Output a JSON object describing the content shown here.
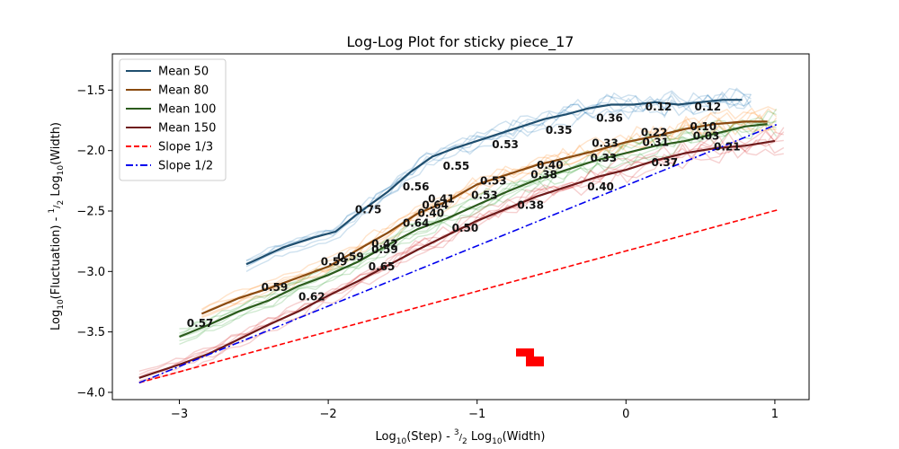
{
  "chart_data": {
    "type": "line",
    "title": "Log-Log Plot for sticky piece_17",
    "xlabel": "Log10(Step) - 3/2 Log10(Width)",
    "ylabel": "Log10(Fluctuation) - 1/2 Log10(Width)",
    "xlim": [
      -3.45,
      1.23
    ],
    "ylim": [
      -4.06,
      -1.2
    ],
    "xticks": [
      -3,
      -2,
      -1,
      0,
      1
    ],
    "yticks": [
      -4.0,
      -3.5,
      -3.0,
      -2.5,
      -2.0,
      -1.5
    ],
    "xtick_labels": [
      "−3",
      "−2",
      "−1",
      "0",
      "1"
    ],
    "ytick_labels": [
      "−4.0",
      "−3.5",
      "−3.0",
      "−2.5",
      "−2.0",
      "−1.5"
    ],
    "legend_position": "upper-left",
    "grid": false,
    "series": [
      {
        "name": "Mean 50",
        "color": "#1f4e6e",
        "x": [
          -2.55,
          -2.3,
          -2.1,
          -1.95,
          -1.8,
          -1.6,
          -1.45,
          -1.3,
          -1.15,
          -1.0,
          -0.85,
          -0.7,
          -0.55,
          -0.4,
          -0.25,
          -0.1,
          0.05,
          0.2,
          0.35,
          0.5,
          0.65,
          0.78
        ],
        "y": [
          -2.94,
          -2.8,
          -2.72,
          -2.67,
          -2.52,
          -2.34,
          -2.18,
          -2.05,
          -1.98,
          -1.92,
          -1.86,
          -1.8,
          -1.74,
          -1.7,
          -1.65,
          -1.62,
          -1.62,
          -1.6,
          -1.62,
          -1.6,
          -1.58,
          -1.58
        ]
      },
      {
        "name": "Mean 80",
        "color": "#8a4a0f",
        "x": [
          -2.85,
          -2.6,
          -2.4,
          -2.2,
          -2.0,
          -1.8,
          -1.6,
          -1.4,
          -1.2,
          -1.0,
          -0.8,
          -0.6,
          -0.4,
          -0.2,
          0.0,
          0.2,
          0.4,
          0.6,
          0.8,
          0.95
        ],
        "y": [
          -3.35,
          -3.22,
          -3.14,
          -3.05,
          -2.96,
          -2.82,
          -2.68,
          -2.52,
          -2.42,
          -2.28,
          -2.2,
          -2.12,
          -2.06,
          -2.0,
          -1.93,
          -1.88,
          -1.82,
          -1.78,
          -1.76,
          -1.76
        ]
      },
      {
        "name": "Mean 100",
        "color": "#2b5b1c",
        "x": [
          -3.0,
          -2.8,
          -2.6,
          -2.4,
          -2.2,
          -2.0,
          -1.8,
          -1.6,
          -1.4,
          -1.2,
          -1.0,
          -0.8,
          -0.6,
          -0.4,
          -0.2,
          0.0,
          0.2,
          0.4,
          0.6,
          0.8,
          0.95
        ],
        "y": [
          -3.54,
          -3.44,
          -3.33,
          -3.24,
          -3.12,
          -3.03,
          -2.92,
          -2.78,
          -2.65,
          -2.56,
          -2.45,
          -2.34,
          -2.24,
          -2.16,
          -2.08,
          -2.02,
          -1.96,
          -1.92,
          -1.86,
          -1.8,
          -1.78
        ]
      },
      {
        "name": "Mean 150",
        "color": "#6e1a1a",
        "x": [
          -3.27,
          -3.0,
          -2.8,
          -2.6,
          -2.4,
          -2.2,
          -2.0,
          -1.8,
          -1.6,
          -1.4,
          -1.2,
          -1.0,
          -0.8,
          -0.6,
          -0.4,
          -0.2,
          0.0,
          0.2,
          0.4,
          0.6,
          0.8,
          1.0
        ],
        "y": [
          -3.88,
          -3.77,
          -3.68,
          -3.56,
          -3.44,
          -3.33,
          -3.2,
          -3.08,
          -2.95,
          -2.82,
          -2.7,
          -2.58,
          -2.48,
          -2.38,
          -2.3,
          -2.22,
          -2.16,
          -2.08,
          -2.02,
          -1.98,
          -1.96,
          -1.92
        ]
      },
      {
        "name": "Slope 1/3",
        "color": "#ff0000",
        "style": "dashed",
        "x": [
          -3.27,
          1.02
        ],
        "y": [
          -3.92,
          -2.49
        ]
      },
      {
        "name": "Slope 1/2",
        "color": "#0000ee",
        "style": "dashdot",
        "x": [
          -3.27,
          1.02
        ],
        "y": [
          -3.92,
          -1.78
        ]
      }
    ],
    "background_bands": [
      {
        "series": "Mean 50",
        "color": "#1f77b4"
      },
      {
        "series": "Mean 80",
        "color": "#ff7f0e"
      },
      {
        "series": "Mean 100",
        "color": "#2ca02c"
      },
      {
        "series": "Mean 150",
        "color": "#d62728"
      }
    ],
    "annotations": [
      {
        "text": "0.75",
        "x": -1.82,
        "y": -2.49
      },
      {
        "text": "0.56",
        "x": -1.5,
        "y": -2.3
      },
      {
        "text": "0.55",
        "x": -1.23,
        "y": -2.13
      },
      {
        "text": "0.53",
        "x": -0.9,
        "y": -1.95
      },
      {
        "text": "0.35",
        "x": -0.54,
        "y": -1.83
      },
      {
        "text": "0.36",
        "x": -0.2,
        "y": -1.73
      },
      {
        "text": "0.12",
        "x": 0.13,
        "y": -1.64
      },
      {
        "text": "0.12",
        "x": 0.46,
        "y": -1.64
      },
      {
        "text": "0.59",
        "x": -1.71,
        "y": -2.82
      },
      {
        "text": "0.41",
        "x": -1.33,
        "y": -2.4
      },
      {
        "text": "0.53",
        "x": -0.98,
        "y": -2.25
      },
      {
        "text": "0.40",
        "x": -0.6,
        "y": -2.12
      },
      {
        "text": "0.33",
        "x": -0.23,
        "y": -1.94
      },
      {
        "text": "0.22",
        "x": 0.1,
        "y": -1.85
      },
      {
        "text": "0.10",
        "x": 0.43,
        "y": -1.8
      },
      {
        "text": "0.59",
        "x": -2.05,
        "y": -2.92
      },
      {
        "text": "0.64",
        "x": -1.37,
        "y": -2.45
      },
      {
        "text": "0.40",
        "x": -1.4,
        "y": -2.52
      },
      {
        "text": "0.53",
        "x": -1.04,
        "y": -2.37
      },
      {
        "text": "0.38",
        "x": -0.64,
        "y": -2.2
      },
      {
        "text": "0.33",
        "x": -0.24,
        "y": -2.06
      },
      {
        "text": "0.31",
        "x": 0.11,
        "y": -1.93
      },
      {
        "text": "0.03",
        "x": 0.45,
        "y": -1.88
      },
      {
        "text": "0.59",
        "x": -2.45,
        "y": -3.13
      },
      {
        "text": "0.64",
        "x": -1.5,
        "y": -2.6
      },
      {
        "text": "0.42",
        "x": -1.71,
        "y": -2.77
      },
      {
        "text": "0.59",
        "x": -1.94,
        "y": -2.88
      },
      {
        "text": "0.57",
        "x": -2.95,
        "y": -3.43
      },
      {
        "text": "0.62",
        "x": -2.2,
        "y": -3.21
      },
      {
        "text": "0.65",
        "x": -1.73,
        "y": -2.96
      },
      {
        "text": "0.50",
        "x": -1.17,
        "y": -2.64
      },
      {
        "text": "0.38",
        "x": -0.73,
        "y": -2.45
      },
      {
        "text": "0.40",
        "x": -0.26,
        "y": -2.3
      },
      {
        "text": "0.37",
        "x": 0.17,
        "y": -2.1
      },
      {
        "text": "0.21",
        "x": 0.59,
        "y": -1.97
      }
    ],
    "legend": [
      {
        "label": "Mean 50",
        "color": "#1f4e6e",
        "style": "solid"
      },
      {
        "label": "Mean 80",
        "color": "#8a4a0f",
        "style": "solid"
      },
      {
        "label": "Mean 100",
        "color": "#2b5b1c",
        "style": "solid"
      },
      {
        "label": "Mean 150",
        "color": "#6e1a1a",
        "style": "solid"
      },
      {
        "label": "Slope 1/3",
        "color": "#ff0000",
        "style": "dashed"
      },
      {
        "label": "Slope 1/2",
        "color": "#0000ee",
        "style": "dashdot"
      }
    ]
  }
}
